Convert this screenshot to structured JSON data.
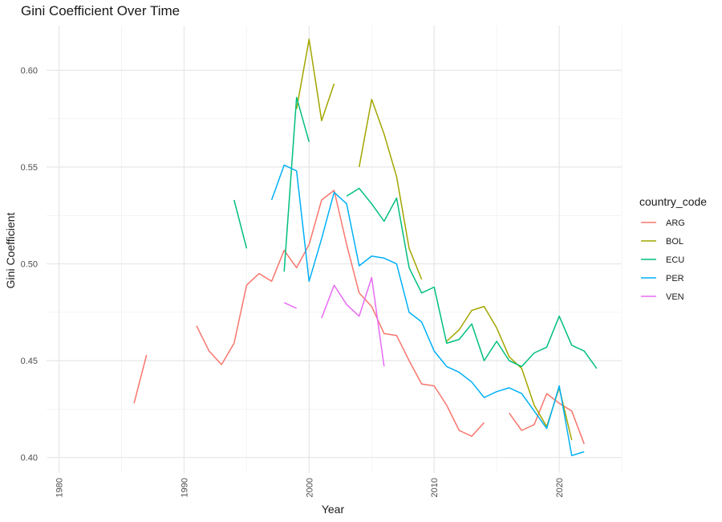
{
  "chart_data": {
    "type": "line",
    "title": "Gini Coefficient Over Time",
    "xlabel": "Year",
    "ylabel": "Gini Coefficient",
    "xlim": [
      1979,
      2025
    ],
    "ylim": [
      0.392,
      0.623
    ],
    "x_ticks": [
      1980,
      1990,
      2000,
      2010,
      2020
    ],
    "y_ticks": [
      0.4,
      0.45,
      0.5,
      0.55,
      0.6
    ],
    "grid": true,
    "legend_title": "country_code",
    "legend_position": "right",
    "series": [
      {
        "name": "ARG",
        "color": "#F8766D",
        "points": [
          [
            1986,
            0.428
          ],
          [
            1987,
            0.453
          ],
          [
            null,
            null
          ],
          [
            1991,
            0.468
          ],
          [
            1992,
            0.455
          ],
          [
            1993,
            0.448
          ],
          [
            1994,
            0.459
          ],
          [
            1995,
            0.489
          ],
          [
            1996,
            0.495
          ],
          [
            1997,
            0.491
          ],
          [
            1998,
            0.507
          ],
          [
            1999,
            0.498
          ],
          [
            2000,
            0.51
          ],
          [
            2001,
            0.533
          ],
          [
            2002,
            0.538
          ],
          [
            2003,
            0.51
          ],
          [
            2004,
            0.485
          ],
          [
            2005,
            0.478
          ],
          [
            2006,
            0.464
          ],
          [
            2007,
            0.463
          ],
          [
            2008,
            0.45
          ],
          [
            2009,
            0.438
          ],
          [
            2010,
            0.437
          ],
          [
            2011,
            0.427
          ],
          [
            2012,
            0.414
          ],
          [
            2013,
            0.411
          ],
          [
            2014,
            0.418
          ],
          [
            null,
            null
          ],
          [
            2016,
            0.423
          ],
          [
            2017,
            0.414
          ],
          [
            2018,
            0.417
          ],
          [
            2019,
            0.433
          ],
          [
            2020,
            0.428
          ],
          [
            2021,
            0.424
          ],
          [
            2022,
            0.407
          ]
        ]
      },
      {
        "name": "BOL",
        "color": "#A3A500",
        "points": [
          [
            1999,
            0.58
          ],
          [
            2000,
            0.616
          ],
          [
            2001,
            0.574
          ],
          [
            2002,
            0.593
          ],
          [
            null,
            null
          ],
          [
            2004,
            0.55
          ],
          [
            2005,
            0.585
          ],
          [
            2006,
            0.567
          ],
          [
            2007,
            0.545
          ],
          [
            2008,
            0.508
          ],
          [
            2009,
            0.492
          ],
          [
            null,
            null
          ],
          [
            2011,
            0.46
          ],
          [
            2012,
            0.466
          ],
          [
            2013,
            0.476
          ],
          [
            2014,
            0.478
          ],
          [
            2015,
            0.467
          ],
          [
            2016,
            0.452
          ],
          [
            2017,
            0.446
          ],
          [
            2018,
            0.427
          ],
          [
            2019,
            0.416
          ],
          [
            2020,
            0.436
          ],
          [
            2021,
            0.409
          ]
        ]
      },
      {
        "name": "ECU",
        "color": "#00BF7D",
        "points": [
          [
            1994,
            0.533
          ],
          [
            1995,
            0.508
          ],
          [
            null,
            null
          ],
          [
            1998,
            0.496
          ],
          [
            1999,
            0.586
          ],
          [
            2000,
            0.563
          ],
          [
            null,
            null
          ],
          [
            2003,
            0.535
          ],
          [
            2004,
            0.539
          ],
          [
            2005,
            0.531
          ],
          [
            2006,
            0.522
          ],
          [
            2007,
            0.534
          ],
          [
            2008,
            0.498
          ],
          [
            2009,
            0.485
          ],
          [
            2010,
            0.488
          ],
          [
            2011,
            0.459
          ],
          [
            2012,
            0.461
          ],
          [
            2013,
            0.469
          ],
          [
            2014,
            0.45
          ],
          [
            2015,
            0.46
          ],
          [
            2016,
            0.45
          ],
          [
            2017,
            0.447
          ],
          [
            2018,
            0.454
          ],
          [
            2019,
            0.457
          ],
          [
            2020,
            0.473
          ],
          [
            2021,
            0.458
          ],
          [
            2022,
            0.455
          ],
          [
            2023,
            0.446
          ]
        ]
      },
      {
        "name": "PER",
        "color": "#00B0F6",
        "points": [
          [
            1997,
            0.533
          ],
          [
            1998,
            0.551
          ],
          [
            1999,
            0.548
          ],
          [
            2000,
            0.491
          ],
          [
            2001,
            0.513
          ],
          [
            2002,
            0.537
          ],
          [
            2003,
            0.531
          ],
          [
            2004,
            0.499
          ],
          [
            2005,
            0.504
          ],
          [
            2006,
            0.503
          ],
          [
            2007,
            0.5
          ],
          [
            2008,
            0.475
          ],
          [
            2009,
            0.47
          ],
          [
            2010,
            0.455
          ],
          [
            2011,
            0.447
          ],
          [
            2012,
            0.444
          ],
          [
            2013,
            0.439
          ],
          [
            2014,
            0.431
          ],
          [
            2015,
            0.434
          ],
          [
            2016,
            0.436
          ],
          [
            2017,
            0.433
          ],
          [
            2018,
            0.424
          ],
          [
            2019,
            0.415
          ],
          [
            2020,
            0.437
          ],
          [
            2021,
            0.401
          ],
          [
            2022,
            0.403
          ]
        ]
      },
      {
        "name": "VEN",
        "color": "#E76BF3",
        "points": [
          [
            1998,
            0.48
          ],
          [
            1999,
            0.477
          ],
          [
            null,
            null
          ],
          [
            2001,
            0.472
          ],
          [
            2002,
            0.489
          ],
          [
            2003,
            0.479
          ],
          [
            2004,
            0.473
          ],
          [
            2005,
            0.493
          ],
          [
            2006,
            0.447
          ]
        ]
      }
    ]
  }
}
